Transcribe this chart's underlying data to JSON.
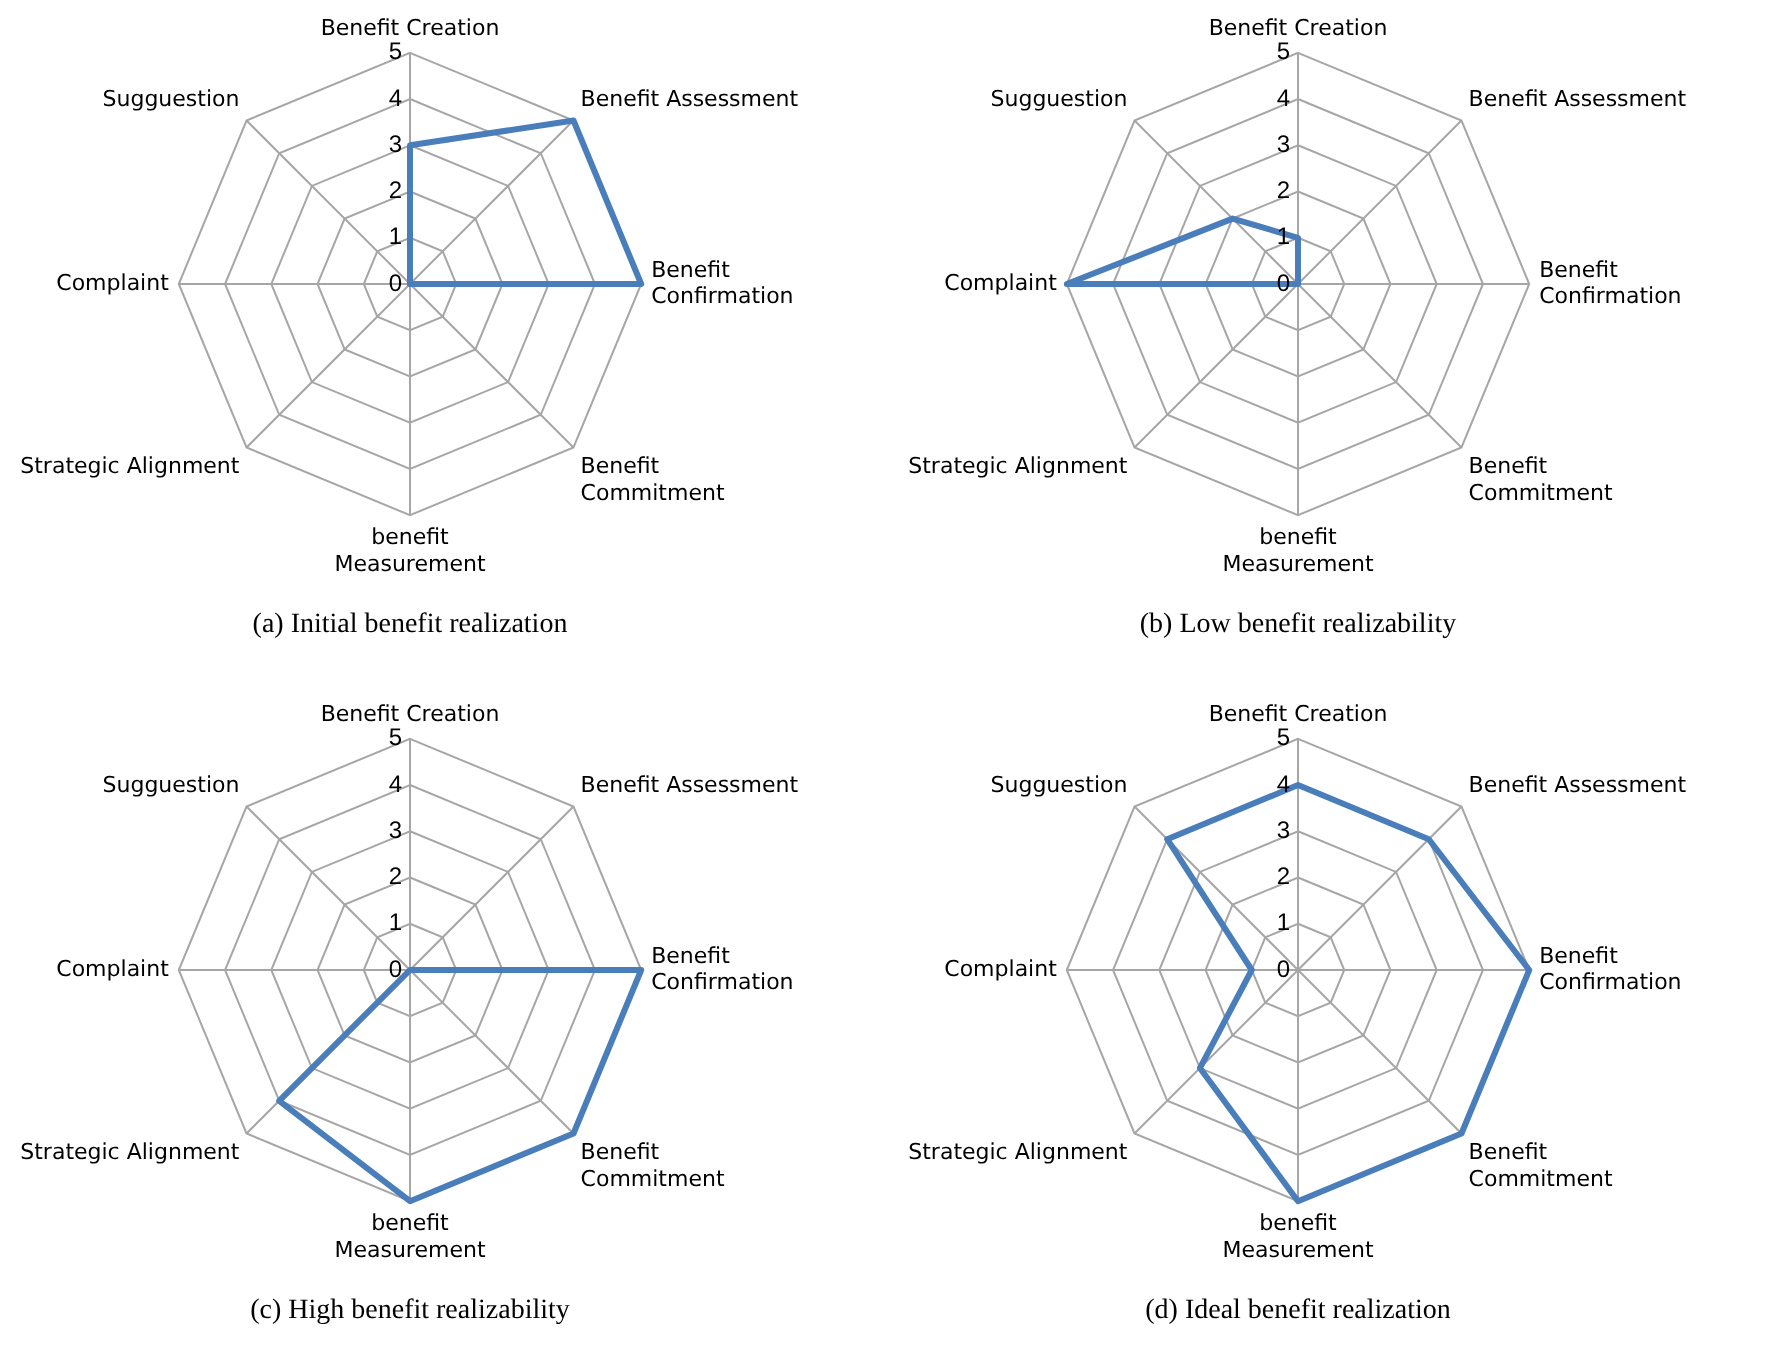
{
  "chart_data": [
    {
      "type": "radar",
      "title": "(a) Initial benefit realization",
      "categories": [
        "Benefit Creation",
        "Benefit Assessment",
        "Benefit Confirmation",
        "Benefit Commitment",
        "benefit Measurement",
        "Strategic Alignment",
        "Complaint",
        "Sugguestion"
      ],
      "series": [
        {
          "color": "#4a7ebb",
          "values": [
            3,
            5,
            5,
            0,
            0,
            0,
            0,
            0
          ]
        }
      ],
      "ylim": [
        0,
        5
      ],
      "yticks": [
        0,
        1,
        2,
        3,
        4,
        5
      ],
      "grid": true,
      "marker": "none",
      "legend": false
    },
    {
      "type": "radar",
      "title": "(b) Low benefit realizability",
      "categories": [
        "Benefit Creation",
        "Benefit Assessment",
        "Benefit Confirmation",
        "Benefit Commitment",
        "benefit Measurement",
        "Strategic Alignment",
        "Complaint",
        "Sugguestion"
      ],
      "series": [
        {
          "color": "#4a7ebb",
          "values": [
            1,
            0,
            0,
            0,
            0,
            0,
            5,
            2
          ]
        }
      ],
      "ylim": [
        0,
        5
      ],
      "yticks": [
        0,
        1,
        2,
        3,
        4,
        5
      ],
      "grid": true,
      "marker": "none",
      "legend": false
    },
    {
      "type": "radar",
      "title": "(c) High benefit realizability",
      "categories": [
        "Benefit Creation",
        "Benefit Assessment",
        "Benefit Confirmation",
        "Benefit Commitment",
        "benefit Measurement",
        "Strategic Alignment",
        "Complaint",
        "Sugguestion"
      ],
      "series": [
        {
          "color": "#4a7ebb",
          "values": [
            0,
            0,
            5,
            5,
            5,
            4,
            0,
            0
          ]
        }
      ],
      "ylim": [
        0,
        5
      ],
      "yticks": [
        0,
        1,
        2,
        3,
        4,
        5
      ],
      "grid": true,
      "marker": "none",
      "legend": false
    },
    {
      "type": "radar",
      "title": "(d) Ideal benefit realization",
      "categories": [
        "Benefit Creation",
        "Benefit Assessment",
        "Benefit Confirmation",
        "Benefit Commitment",
        "benefit Measurement",
        "Strategic Alignment",
        "Complaint",
        "Sugguestion"
      ],
      "series": [
        {
          "color": "#4a7ebb",
          "values": [
            4,
            4,
            5,
            5,
            5,
            3,
            1,
            4
          ]
        }
      ],
      "ylim": [
        0,
        5
      ],
      "yticks": [
        0,
        1,
        2,
        3,
        4,
        5
      ],
      "grid": true,
      "marker": "none",
      "legend": false
    }
  ]
}
